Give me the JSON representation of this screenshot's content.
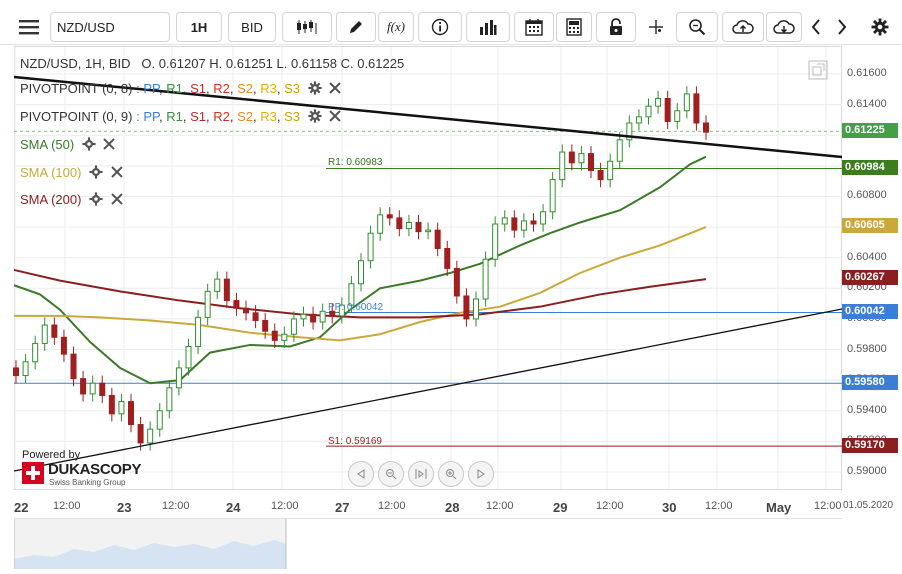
{
  "toolbar": {
    "symbol": "NZD/USD",
    "timeframe": "1H",
    "price_type": "BID",
    "fx_label": "f(x)"
  },
  "legend": {
    "instrument": "NZD/USD, 1H, BID",
    "ohlc": "O. 0.61207 H. 0.61251 L. 0.61158 C. 0.61225",
    "pivot1_name": "PIVOTPOINT (0, 8)",
    "pivot2_name": "PIVOTPOINT (0, 9)",
    "pivot_sep": ":",
    "pivot_levels": {
      "pp": "PP",
      "r1": "R1",
      "s1": "S1",
      "r2": "R2",
      "s2": "S2",
      "r3": "R3",
      "s3": "S3"
    },
    "sma50": "SMA (50)",
    "sma100": "SMA (100)",
    "sma200": "SMA (200)"
  },
  "annotations": {
    "r1": "R1: 0.60983",
    "pp": "PP: 0.60042",
    "s1": "S1: 0.59169"
  },
  "branding": {
    "powered_by": "Powered by",
    "name": "DUKASCOPY",
    "tagline": "Swiss Banking Group"
  },
  "price_axis": {
    "ticks": [
      "0.61600",
      "0.61400",
      "0.61200",
      "0.61000",
      "0.60800",
      "0.60600",
      "0.60400",
      "0.60200",
      "0.60000",
      "0.59800",
      "0.59600",
      "0.59400",
      "0.59200",
      "0.59000"
    ],
    "current_price": "0.61225",
    "r1_price": "0.60984",
    "sma100_price": "0.60605",
    "sma200_price": "0.60267",
    "pp_price": "0.60042",
    "blue_level": "0.59580",
    "s1_price": "0.59170"
  },
  "time_axis": {
    "labels": [
      {
        "text": "22",
        "day": true
      },
      {
        "text": "12:00",
        "day": false
      },
      {
        "text": "23",
        "day": true
      },
      {
        "text": "12:00",
        "day": false
      },
      {
        "text": "24",
        "day": true
      },
      {
        "text": "12:00",
        "day": false
      },
      {
        "text": "27",
        "day": true
      },
      {
        "text": "12:00",
        "day": false
      },
      {
        "text": "28",
        "day": true
      },
      {
        "text": "12:00",
        "day": false
      },
      {
        "text": "29",
        "day": true
      },
      {
        "text": "12:00",
        "day": false
      },
      {
        "text": "30",
        "day": true
      },
      {
        "text": "12:00",
        "day": false
      },
      {
        "text": "May",
        "day": true
      },
      {
        "text": "12:00",
        "day": false
      }
    ],
    "end_date": "01.05.2020"
  },
  "colors": {
    "pp": "#3a7fd5",
    "r1": "#3a8d3a",
    "s1": "#c0282a",
    "r2": "#d4301e",
    "s2": "#e08a1e",
    "r3": "#e0b000",
    "s3": "#c9a400",
    "candle_up": "#2f8f2f",
    "candle_down": "#a01f1f",
    "sma50": "#3c7a2a",
    "sma100": "#c9a93a",
    "sma200": "#8a1f1f",
    "trendline": "#111111",
    "current_badge": "#43a047",
    "r1_badge": "#3b7d1f",
    "sma100_badge": "#c9a93a",
    "sma200_badge": "#8a1f1f",
    "pp_badge": "#3a7fd5",
    "blue_badge": "#3a7fd5",
    "s1_badge": "#8a1f1f"
  }
}
